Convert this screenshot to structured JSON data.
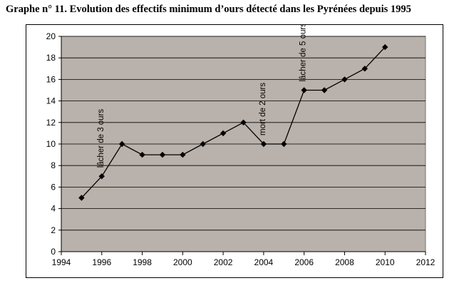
{
  "title": "Graphe n° 11. Evolution des effectifs minimum d’ours détecté dans les Pyrénées depuis 1995",
  "chart_data": {
    "type": "line",
    "title": "Graphe n° 11. Evolution des effectifs minimum d’ours détecté dans les Pyrénées depuis 1995",
    "xlabel": "",
    "ylabel": "",
    "xlim": [
      1994,
      2012
    ],
    "ylim": [
      0,
      20
    ],
    "xticks": [
      1994,
      1996,
      1998,
      2000,
      2002,
      2004,
      2006,
      2008,
      2010,
      2012
    ],
    "yticks": [
      0,
      2,
      4,
      6,
      8,
      10,
      12,
      14,
      16,
      18,
      20
    ],
    "grid": "horizontal",
    "legend": "none",
    "plot_background": "#b9b1ab",
    "line_color": "#000000",
    "marker": "diamond",
    "x": [
      1995,
      1996,
      1997,
      1998,
      1999,
      2000,
      2001,
      2002,
      2003,
      2004,
      2005,
      2006,
      2007,
      2008,
      2009,
      2010
    ],
    "values": [
      5,
      7,
      10,
      9,
      9,
      9,
      10,
      11,
      12,
      10,
      10,
      15,
      15,
      16,
      17,
      19
    ],
    "annotations": [
      {
        "text": "lâcher de 3 ours",
        "x": 1996,
        "y": 7,
        "orientation": "vertical"
      },
      {
        "text": "mort de 2 ours",
        "x": 2004,
        "y": 10,
        "orientation": "vertical"
      },
      {
        "text": "lâcher de 5 ours",
        "x": 2006,
        "y": 15,
        "orientation": "vertical"
      }
    ]
  }
}
